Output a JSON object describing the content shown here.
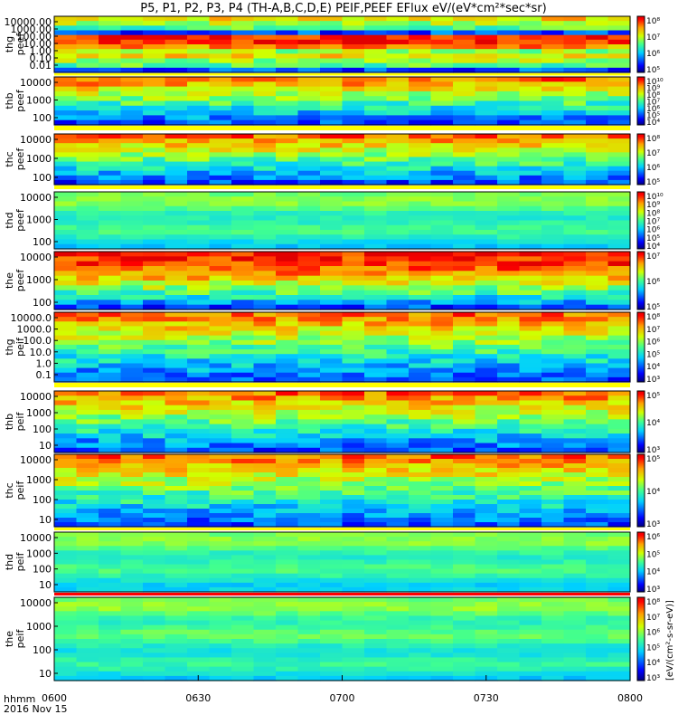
{
  "title": "P5, P1, P2, P3, P4 (TH-A,B,C,D,E) PEIF,PEEF EFlux eV/(eV*cm²*sec*sr)",
  "colorbar_unit": "[eV/(cm²-s-sr-eV)]",
  "date_label": "hhmm",
  "date_value": "2016 Nov 15",
  "x_ticks": [
    "0600",
    "0630",
    "0700",
    "0730",
    "0800"
  ],
  "chart_data": [
    {
      "type": "heatmap",
      "probe": "thg",
      "ylabel": "thg\npeef",
      "yticks": [
        "10000.00",
        "1000.00",
        "100.00",
        "10.00",
        "1.00",
        "0.10",
        "0.01"
      ],
      "cbar": [
        "10⁵",
        "10⁶",
        "10⁷",
        "10⁸"
      ],
      "pattern": "rows"
    },
    {
      "type": "heatmap",
      "probe": "thb",
      "ylabel": "thb\npeef",
      "yticks": [
        "10000",
        "1000",
        "100"
      ],
      "cbar": [
        "10⁴",
        "10⁵",
        "10⁶",
        "10⁷",
        "10⁸",
        "10⁹",
        "10¹⁰"
      ],
      "pattern": "blocks"
    },
    {
      "type": "heatmap",
      "probe": "thc",
      "ylabel": "thc\npeef",
      "yticks": [
        "10000",
        "1000",
        "100"
      ],
      "cbar": [
        "10⁵",
        "10⁶",
        "10⁷",
        "10⁸"
      ],
      "pattern": "blocks"
    },
    {
      "type": "heatmap",
      "probe": "thd",
      "ylabel": "thd\npeef",
      "yticks": [
        "10000",
        "1000",
        "100"
      ],
      "cbar": [
        "10⁴",
        "10⁵",
        "10⁶",
        "10⁷",
        "10⁸",
        "10⁹",
        "10¹⁰"
      ],
      "pattern": "smooth"
    },
    {
      "type": "heatmap",
      "probe": "the",
      "ylabel": "the\npeef",
      "yticks": [
        "10000",
        "1000",
        "100"
      ],
      "cbar": [
        "10⁵",
        "10⁶",
        "10⁷"
      ],
      "pattern": "red"
    },
    {
      "type": "heatmap",
      "probe": "thg",
      "ylabel": "thg\npeif",
      "yticks": [
        "10000.0",
        "1000.0",
        "100.0",
        "10.0",
        "1.0",
        "0.1"
      ],
      "cbar": [
        "10³",
        "10⁴",
        "10⁵",
        "10⁶",
        "10⁷",
        "10⁸"
      ],
      "pattern": "blocks"
    },
    {
      "type": "heatmap",
      "probe": "thb",
      "ylabel": "thb\npeif",
      "yticks": [
        "10000",
        "1000",
        "100",
        "10"
      ],
      "cbar": [
        "10³",
        "10⁴",
        "10⁵"
      ],
      "pattern": "blocks"
    },
    {
      "type": "heatmap",
      "probe": "thc",
      "ylabel": "thc\npeif",
      "yticks": [
        "10000",
        "1000",
        "100",
        "10"
      ],
      "cbar": [
        "10³",
        "10⁴",
        "10⁵"
      ],
      "pattern": "blocks"
    },
    {
      "type": "heatmap",
      "probe": "thd",
      "ylabel": "thd\npeif",
      "yticks": [
        "10000",
        "1000",
        "100",
        "10"
      ],
      "cbar": [
        "10³",
        "10⁴",
        "10⁵",
        "10⁶"
      ],
      "pattern": "smooth"
    },
    {
      "type": "heatmap",
      "probe": "the",
      "ylabel": "the\npeif",
      "yticks": [
        "10000",
        "1000",
        "100",
        "10"
      ],
      "cbar": [
        "10³",
        "10⁴",
        "10⁵",
        "10⁶",
        "10⁷",
        "10⁸"
      ],
      "pattern": "smooth"
    }
  ]
}
